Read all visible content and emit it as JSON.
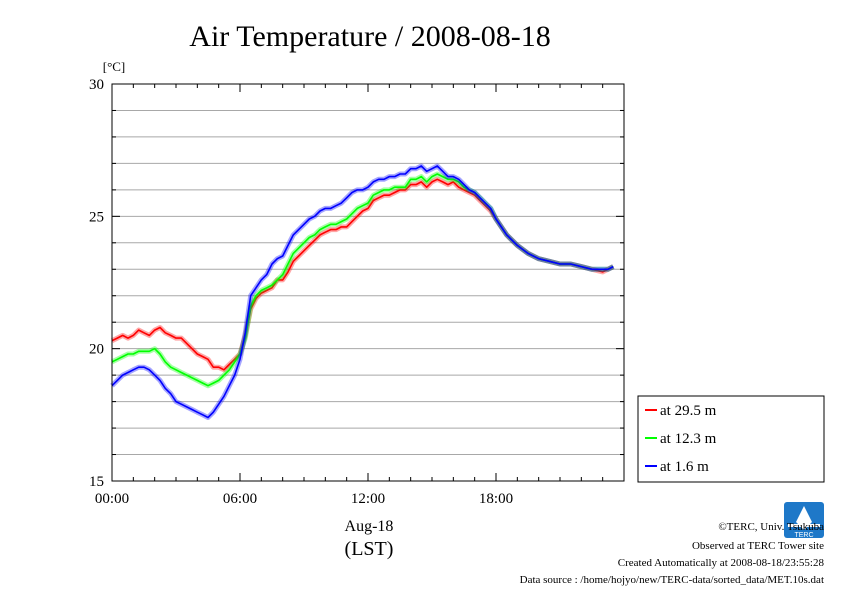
{
  "chart_data": {
    "type": "line",
    "title": "Air Temperature / 2008-08-18",
    "ylabel": "[°C]",
    "xlabel_date": "Aug-18",
    "xlabel_unit": "(LST)",
    "ylim": [
      15,
      30
    ],
    "xlim_hours": [
      0,
      24
    ],
    "y_ticks": [
      "30",
      "25",
      "20",
      "15"
    ],
    "x_ticks": [
      "00:00",
      "06:00",
      "12:00",
      "18:00"
    ],
    "grid": "horizontal",
    "legend_position": "right, lower",
    "x_hours": [
      0,
      0.25,
      0.5,
      0.75,
      1,
      1.25,
      1.5,
      1.75,
      2,
      2.25,
      2.5,
      2.75,
      3,
      3.25,
      3.5,
      3.75,
      4,
      4.25,
      4.5,
      4.75,
      5,
      5.25,
      5.5,
      5.75,
      6,
      6.25,
      6.5,
      6.75,
      7,
      7.25,
      7.5,
      7.75,
      8,
      8.25,
      8.5,
      8.75,
      9,
      9.25,
      9.5,
      9.75,
      10,
      10.25,
      10.5,
      10.75,
      11,
      11.25,
      11.5,
      11.75,
      12,
      12.25,
      12.5,
      12.75,
      13,
      13.25,
      13.5,
      13.75,
      14,
      14.25,
      14.5,
      14.75,
      15,
      15.25,
      15.5,
      15.75,
      16,
      16.25,
      16.5,
      16.75,
      17,
      17.25,
      17.5,
      17.75,
      18,
      18.5,
      19,
      19.5,
      20,
      20.5,
      21,
      21.5,
      22,
      22.5,
      23,
      23.25,
      23.5
    ],
    "series": [
      {
        "name": "at 29.5 m",
        "color": "#ff0000",
        "values": [
          20.3,
          20.4,
          20.5,
          20.4,
          20.5,
          20.7,
          20.6,
          20.5,
          20.7,
          20.8,
          20.6,
          20.5,
          20.4,
          20.4,
          20.2,
          20.0,
          19.8,
          19.7,
          19.6,
          19.3,
          19.3,
          19.2,
          19.4,
          19.6,
          19.8,
          20.5,
          21.5,
          21.9,
          22.1,
          22.2,
          22.3,
          22.6,
          22.6,
          22.9,
          23.3,
          23.5,
          23.7,
          23.9,
          24.1,
          24.3,
          24.4,
          24.5,
          24.5,
          24.6,
          24.6,
          24.8,
          25.0,
          25.2,
          25.3,
          25.6,
          25.7,
          25.8,
          25.8,
          25.9,
          26.0,
          26.0,
          26.2,
          26.2,
          26.3,
          26.1,
          26.3,
          26.4,
          26.3,
          26.2,
          26.3,
          26.1,
          26.0,
          25.9,
          25.8,
          25.6,
          25.4,
          25.2,
          24.9,
          24.3,
          23.9,
          23.6,
          23.4,
          23.3,
          23.2,
          23.2,
          23.1,
          23.0,
          22.9,
          23.0,
          23.1
        ]
      },
      {
        "name": "at 12.3 m",
        "color": "#00ff00",
        "values": [
          19.5,
          19.6,
          19.7,
          19.8,
          19.8,
          19.9,
          19.9,
          19.9,
          20.0,
          19.8,
          19.5,
          19.3,
          19.2,
          19.1,
          19.0,
          18.9,
          18.8,
          18.7,
          18.6,
          18.7,
          18.8,
          19.0,
          19.2,
          19.5,
          19.8,
          20.4,
          21.6,
          22.0,
          22.2,
          22.3,
          22.4,
          22.6,
          22.8,
          23.2,
          23.6,
          23.8,
          24.0,
          24.2,
          24.3,
          24.5,
          24.6,
          24.7,
          24.7,
          24.8,
          24.9,
          25.1,
          25.3,
          25.4,
          25.5,
          25.8,
          25.9,
          26.0,
          26.0,
          26.1,
          26.1,
          26.1,
          26.4,
          26.4,
          26.5,
          26.3,
          26.5,
          26.6,
          26.5,
          26.4,
          26.4,
          26.3,
          26.1,
          26.0,
          25.9,
          25.7,
          25.5,
          25.3,
          24.9,
          24.3,
          23.9,
          23.6,
          23.4,
          23.3,
          23.2,
          23.2,
          23.1,
          23.0,
          23.0,
          23.0,
          23.1
        ]
      },
      {
        "name": "at 1.6 m",
        "color": "#0000ff",
        "values": [
          18.6,
          18.8,
          19.0,
          19.1,
          19.2,
          19.3,
          19.3,
          19.2,
          19.0,
          18.8,
          18.5,
          18.3,
          18.0,
          17.9,
          17.8,
          17.7,
          17.6,
          17.5,
          17.4,
          17.6,
          17.9,
          18.2,
          18.6,
          19.0,
          19.6,
          20.6,
          22.0,
          22.3,
          22.6,
          22.8,
          23.2,
          23.4,
          23.5,
          23.9,
          24.3,
          24.5,
          24.7,
          24.9,
          25.0,
          25.2,
          25.3,
          25.3,
          25.4,
          25.5,
          25.7,
          25.9,
          26.0,
          26.0,
          26.1,
          26.3,
          26.4,
          26.4,
          26.5,
          26.5,
          26.6,
          26.6,
          26.8,
          26.8,
          26.9,
          26.7,
          26.8,
          26.9,
          26.7,
          26.5,
          26.5,
          26.4,
          26.2,
          26.0,
          25.9,
          25.7,
          25.5,
          25.3,
          24.9,
          24.3,
          23.9,
          23.6,
          23.4,
          23.3,
          23.2,
          23.2,
          23.1,
          23.0,
          23.0,
          23.0,
          23.1
        ]
      }
    ]
  },
  "legend": {
    "items": [
      {
        "label": "at 29.5 m",
        "color": "#ff0000"
      },
      {
        "label": "at 12.3 m",
        "color": "#00ff00"
      },
      {
        "label": "at 1.6 m",
        "color": "#0000ff"
      }
    ]
  },
  "footer": {
    "copyright": "©TERC, Univ. Tsukuba",
    "observed": "Observed at TERC Tower site",
    "created": "Created Automatically at 2008-08-18/23:55:28",
    "source": "Data source : /home/hojyo/new/TERC-data/sorted_data/MET.10s.dat",
    "logo_text": "TERC"
  }
}
